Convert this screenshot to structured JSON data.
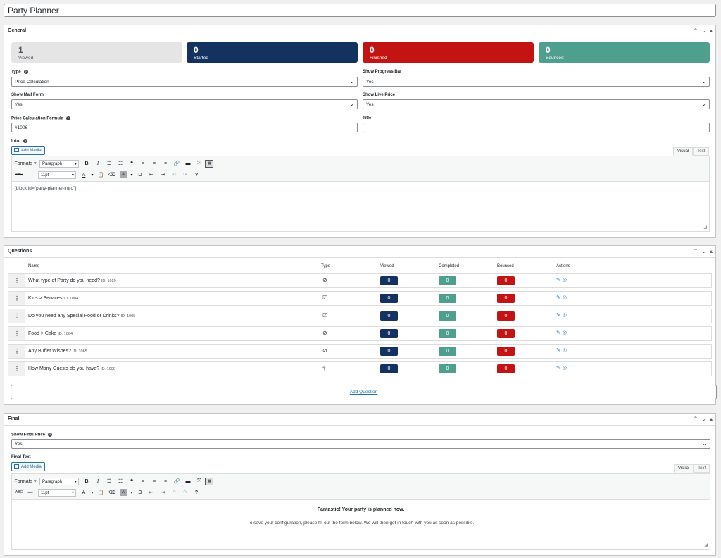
{
  "page": {
    "title": "Party Planner"
  },
  "general": {
    "title": "General",
    "stats": [
      {
        "value": "1",
        "label": "Viewed",
        "color": "#e5e5e5"
      },
      {
        "value": "0",
        "label": "Started",
        "color": "#143260"
      },
      {
        "value": "0",
        "label": "Finished",
        "color": "#c41313"
      },
      {
        "value": "0",
        "label": "Bounced",
        "color": "#4f9f8f"
      }
    ],
    "type_label": "Type",
    "type_value": "Price Calculation",
    "progress_label": "Show Progress Bar",
    "progress_value": "Yes",
    "mail_label": "Show Mail Form",
    "mail_value": "Yes",
    "live_label": "Show Live Price",
    "live_value": "Yes",
    "formula_label": "Price Calculation Formula",
    "formula_value": "#1006",
    "title_label": "Title",
    "title_value": "",
    "intro_label": "Intro",
    "intro_content": "[block id=\"party-planner-intro\"]"
  },
  "editor": {
    "add_media": "Add Media",
    "tab_visual": "Visual",
    "tab_text": "Text",
    "formats": "Formats",
    "paragraph": "Paragraph",
    "fontsize": "11pt"
  },
  "questions": {
    "title": "Questions",
    "headers": {
      "name": "Name",
      "type": "Type",
      "viewed": "Viewed",
      "completed": "Completed",
      "bounced": "Bounced",
      "actions": "Actions"
    },
    "rows": [
      {
        "name": "What type of Party do you need?",
        "id": "ID: 1020",
        "type_icon": "radio-icon",
        "viewed": "0",
        "completed": "0",
        "bounced": "0"
      },
      {
        "name": "Kids > Services",
        "id": "ID: 1004",
        "type_icon": "checkbox-icon",
        "viewed": "0",
        "completed": "0",
        "bounced": "0"
      },
      {
        "name": "Do you need any Special Food or Drinks?",
        "id": "ID: 1005",
        "type_icon": "checkbox-icon",
        "viewed": "0",
        "completed": "0",
        "bounced": "0"
      },
      {
        "name": "Food > Cake",
        "id": "ID: 1064",
        "type_icon": "radio-icon",
        "viewed": "0",
        "completed": "0",
        "bounced": "0"
      },
      {
        "name": "Any Buffet Wishes?",
        "id": "ID: 1065",
        "type_icon": "radio-icon",
        "viewed": "0",
        "completed": "0",
        "bounced": "0"
      },
      {
        "name": "How Many Guests do you have?",
        "id": "ID: 1006",
        "type_icon": "slider-icon",
        "viewed": "0",
        "completed": "0",
        "bounced": "0"
      }
    ],
    "add_label": "Add Question"
  },
  "final": {
    "title": "Final",
    "price_label": "Show Final Price",
    "price_value": "Yes",
    "text_label": "Final Text",
    "heading": "Fantastic! Your party is planned now.",
    "body": "To save your configuration, please fill out the form below. We will then get in touch with you as soon as possible."
  },
  "colors": {
    "navy": "#143260",
    "red": "#c41313",
    "teal": "#4f9f8f",
    "link": "#2271b1"
  }
}
